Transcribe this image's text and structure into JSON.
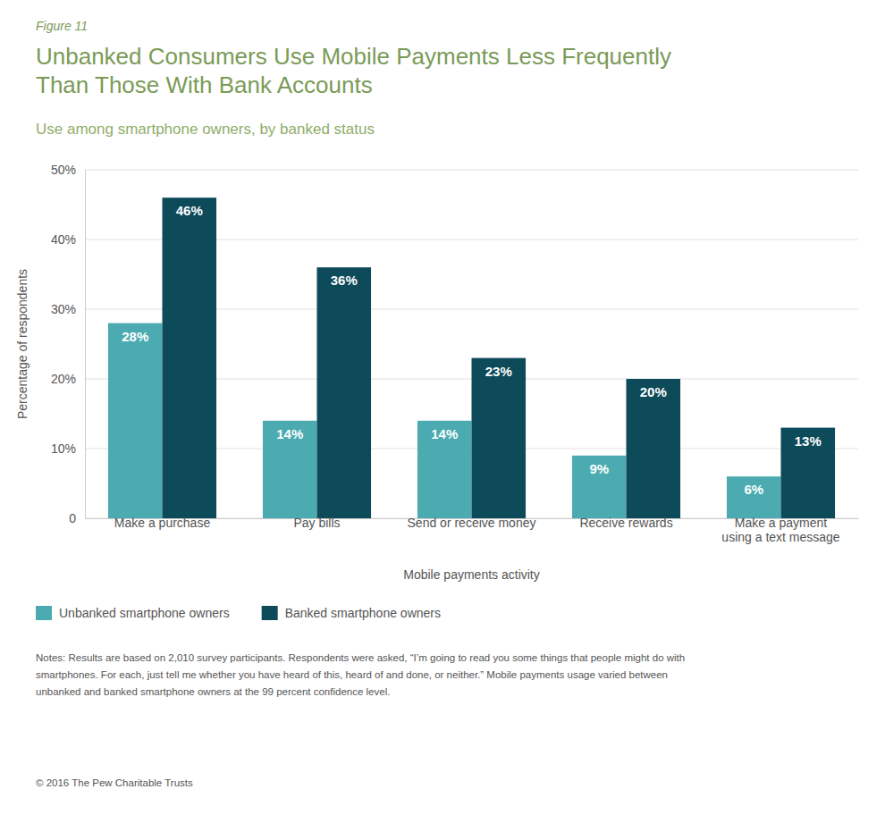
{
  "chart_data": {
    "type": "bar",
    "title": "Unbanked Consumers Use Mobile Payments Less Frequently\nThan Those With Bank Accounts",
    "subtitle": "Use among smartphone owners, by banked status",
    "annotations": [
      "Figure 11",
      "Notes: Results are based on 2,010 survey participants. Respondents were asked, “I’m going to read you some things that people might do with\nsmartphones. For each, just tell me whether you have heard of this, heard of and done, or neither.” Mobile payments usage varied between\nunbanked and banked smartphone owners at the 99 percent confidence level.",
      "© 2016 The Pew Charitable Trusts"
    ],
    "categories": [
      "Make a purchase",
      "Pay bills",
      "Send or receive money",
      "Receive rewards",
      "Make a payment\nusing a text message"
    ],
    "series": [
      {
        "name": "Unbanked smartphone owners",
        "color": "#4BABB0",
        "values": [
          28,
          14,
          14,
          9,
          6
        ],
        "value_labels": [
          "28%",
          "14%",
          "14%",
          "9%",
          "6%"
        ]
      },
      {
        "name": "Banked smartphone owners",
        "color": "#0D4A5A",
        "values": [
          46,
          36,
          23,
          20,
          13
        ],
        "value_labels": [
          "46%",
          "36%",
          "23%",
          "20%",
          "13%"
        ]
      }
    ],
    "xlabel": "Mobile payments activity",
    "ylabel": "Percentage of respondents",
    "ylim": [
      0,
      50
    ],
    "yticks": [
      0,
      {
        "value": 10,
        "label": "10%"
      },
      {
        "value": 20,
        "label": "20%"
      },
      {
        "value": 30,
        "label": "30%"
      },
      {
        "value": 40,
        "label": "40%"
      },
      {
        "value": 50,
        "label": "50%"
      }
    ],
    "grid": true,
    "legend": "bottom",
    "data_labels": true
  }
}
